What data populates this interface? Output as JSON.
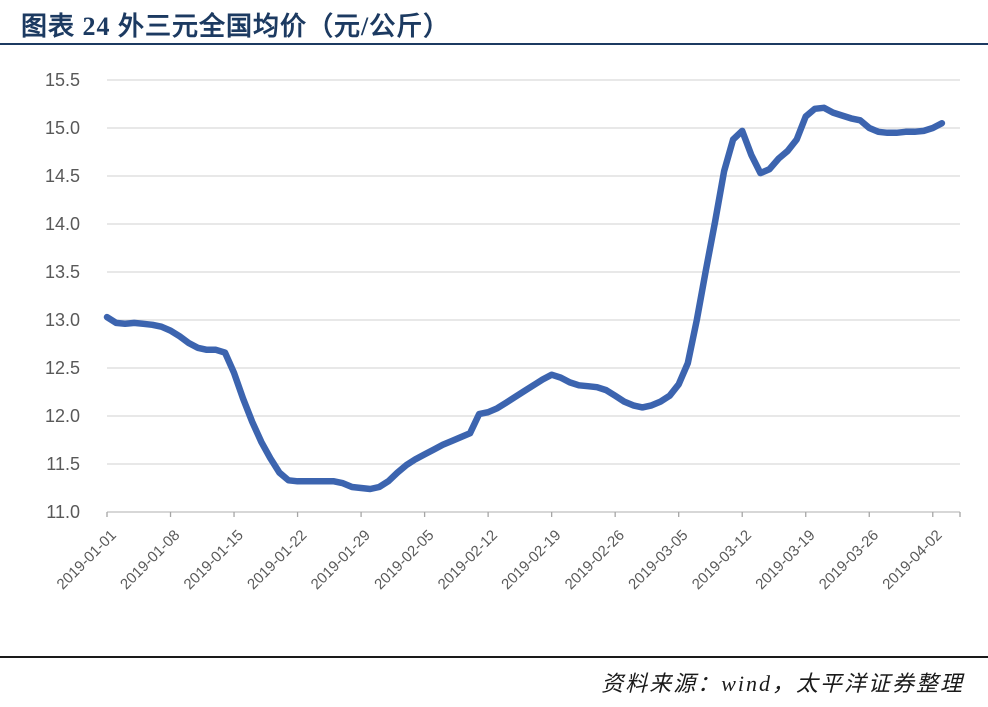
{
  "header": {
    "title": "图表 24  外三元全国均价（元/公斤）"
  },
  "footer": {
    "source": "资料来源：wind，太平洋证券整理"
  },
  "colors": {
    "title": "#1c3a61",
    "rule_top": "#1c3a61",
    "rule_bottom": "#1a1a1a",
    "line": "#3c64af",
    "grid": "#d9d9d9",
    "axis": "#bfbfbf",
    "tick": "#a6a6a6",
    "tick_label": "#595959"
  },
  "chart_data": {
    "type": "line",
    "title": "外三元全国均价（元/公斤）",
    "ylabel": "",
    "xlabel": "",
    "ylim": [
      11.0,
      15.5
    ],
    "y_ticks": [
      11.0,
      11.5,
      12.0,
      12.5,
      13.0,
      13.5,
      14.0,
      14.5,
      15.0,
      15.5
    ],
    "grid": true,
    "legend_position": "none",
    "x_tick_labels": [
      "2019-01-01",
      "2019-01-08",
      "2019-01-15",
      "2019-01-22",
      "2019-01-29",
      "2019-02-05",
      "2019-02-12",
      "2019-02-19",
      "2019-02-26",
      "2019-03-05",
      "2019-03-12",
      "2019-03-19",
      "2019-03-26",
      "2019-04-02"
    ],
    "x": [
      "2019-01-01",
      "2019-01-02",
      "2019-01-03",
      "2019-01-04",
      "2019-01-05",
      "2019-01-06",
      "2019-01-07",
      "2019-01-08",
      "2019-01-09",
      "2019-01-10",
      "2019-01-11",
      "2019-01-12",
      "2019-01-13",
      "2019-01-14",
      "2019-01-15",
      "2019-01-16",
      "2019-01-17",
      "2019-01-18",
      "2019-01-19",
      "2019-01-20",
      "2019-01-21",
      "2019-01-22",
      "2019-01-23",
      "2019-01-24",
      "2019-01-25",
      "2019-01-26",
      "2019-01-27",
      "2019-01-28",
      "2019-01-29",
      "2019-01-30",
      "2019-01-31",
      "2019-02-01",
      "2019-02-02",
      "2019-02-03",
      "2019-02-04",
      "2019-02-05",
      "2019-02-06",
      "2019-02-07",
      "2019-02-08",
      "2019-02-09",
      "2019-02-10",
      "2019-02-11",
      "2019-02-12",
      "2019-02-13",
      "2019-02-14",
      "2019-02-15",
      "2019-02-16",
      "2019-02-17",
      "2019-02-18",
      "2019-02-19",
      "2019-02-20",
      "2019-02-21",
      "2019-02-22",
      "2019-02-23",
      "2019-02-24",
      "2019-02-25",
      "2019-02-26",
      "2019-02-27",
      "2019-02-28",
      "2019-03-01",
      "2019-03-02",
      "2019-03-03",
      "2019-03-04",
      "2019-03-05",
      "2019-03-06",
      "2019-03-07",
      "2019-03-08",
      "2019-03-09",
      "2019-03-10",
      "2019-03-11",
      "2019-03-12",
      "2019-03-13",
      "2019-03-14",
      "2019-03-15",
      "2019-03-16",
      "2019-03-17",
      "2019-03-18",
      "2019-03-19",
      "2019-03-20",
      "2019-03-21",
      "2019-03-22",
      "2019-03-23",
      "2019-03-24",
      "2019-03-25",
      "2019-03-26",
      "2019-03-27",
      "2019-03-28",
      "2019-03-29",
      "2019-03-30",
      "2019-03-31",
      "2019-04-01",
      "2019-04-02",
      "2019-04-03"
    ],
    "values": [
      13.03,
      12.97,
      12.96,
      12.97,
      12.96,
      12.95,
      12.93,
      12.89,
      12.83,
      12.76,
      12.71,
      12.69,
      12.69,
      12.66,
      12.45,
      12.18,
      11.94,
      11.73,
      11.56,
      11.41,
      11.33,
      11.32,
      11.32,
      11.32,
      11.32,
      11.32,
      11.3,
      11.26,
      11.25,
      11.24,
      11.26,
      11.32,
      11.41,
      11.49,
      11.55,
      11.6,
      11.65,
      11.7,
      11.74,
      11.78,
      11.82,
      12.02,
      12.04,
      12.08,
      12.14,
      12.2,
      12.26,
      12.32,
      12.38,
      12.43,
      12.4,
      12.35,
      12.32,
      12.31,
      12.3,
      12.27,
      12.21,
      12.15,
      12.11,
      12.09,
      12.11,
      12.15,
      12.21,
      12.33,
      12.55,
      13.0,
      13.52,
      14.02,
      14.55,
      14.88,
      14.97,
      14.72,
      14.53,
      14.57,
      14.68,
      14.76,
      14.88,
      15.12,
      15.2,
      15.21,
      15.16,
      15.13,
      15.1,
      15.08,
      15.0,
      14.96,
      14.95,
      14.95,
      14.96,
      14.96,
      14.97,
      15.0,
      15.05
    ]
  }
}
